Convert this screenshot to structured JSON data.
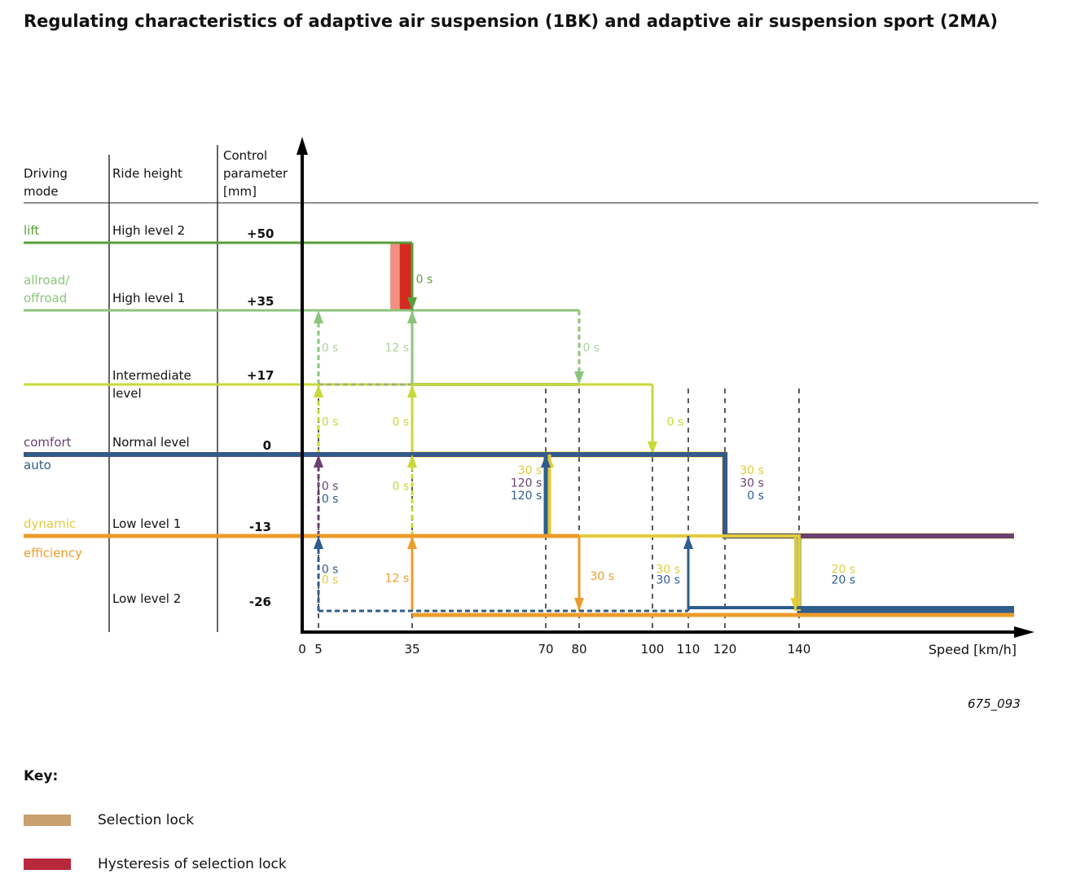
{
  "title": "Regulating characteristics of adaptive air suspension (1BK) and adaptive air suspension sport (2MA)",
  "headers": {
    "mode": "Driving\nmode",
    "height": "Ride height",
    "param": "Control\nparameter\n[mm]"
  },
  "rows": [
    {
      "modes": [
        {
          "label": "lift",
          "color": "#5a9e3a"
        }
      ],
      "height": "High level 2",
      "param": "+50",
      "mm": 50
    },
    {
      "modes": [
        {
          "label": "allroad/\noffroad",
          "color": "#8cc47c"
        }
      ],
      "height": "High level 1",
      "param": "+35",
      "mm": 35
    },
    {
      "modes": [],
      "height": "Intermediate\nlevel",
      "param": "+17",
      "mm": 17
    },
    {
      "modes": [
        {
          "label": "comfort",
          "color": "#6a3f73"
        },
        {
          "label": "auto",
          "color": "#2f5d8c"
        }
      ],
      "height": "Normal level",
      "param": "0",
      "mm": 0
    },
    {
      "modes": [
        {
          "label": "dynamic",
          "color": "#e2cc3c"
        },
        {
          "label": "efficiency",
          "color": "#ec9c2a"
        }
      ],
      "height": "Low level 1",
      "param": "-13",
      "mm": -13
    },
    {
      "modes": [],
      "height": "Low level 2",
      "param": "-26",
      "mm": -26
    }
  ],
  "figure_id": "675_093",
  "key": {
    "title": "Key:",
    "items": [
      {
        "label": "Selection lock",
        "color": "#c8a070"
      },
      {
        "label": "Hysteresis of selection lock",
        "color": "#b8283a"
      }
    ]
  },
  "chart_data": {
    "type": "line",
    "xlabel": "Speed [km/h]",
    "xticks": [
      0,
      5,
      35,
      70,
      80,
      100,
      110,
      120,
      140
    ],
    "dashed_guides": [
      5,
      35,
      70,
      80,
      100,
      110,
      120,
      140
    ],
    "locks": [
      {
        "from": 28,
        "to": 31,
        "mm_from": 35,
        "mm_to": 50,
        "color": "#f09080"
      },
      {
        "from": 31,
        "to": 35,
        "mm_from": 35,
        "mm_to": 50,
        "color": "#d42a20"
      }
    ],
    "series": [
      {
        "name": "allroad-high1",
        "color": "#8cc47c",
        "w": 3,
        "pts": [
          [
            -1,
            35
          ],
          [
            80,
            35
          ]
        ]
      },
      {
        "name": "allroad-down-80",
        "color": "#8cc47c",
        "w": 3,
        "dash": true,
        "arrow": true,
        "pts": [
          [
            80,
            35
          ],
          [
            80,
            17
          ]
        ]
      },
      {
        "name": "allroad-up-5",
        "color": "#8cc47c",
        "w": 3,
        "dash": true,
        "arrow": true,
        "pts": [
          [
            5,
            17
          ],
          [
            5,
            35
          ]
        ]
      },
      {
        "name": "allroad-up-35",
        "color": "#8cc47c",
        "w": 3,
        "arrow": true,
        "pts": [
          [
            35,
            17
          ],
          [
            35,
            35
          ]
        ]
      },
      {
        "name": "allroad-inter",
        "color": "#9cbc80",
        "w": 4,
        "pts": [
          [
            35,
            17
          ],
          [
            80,
            17
          ]
        ]
      },
      {
        "name": "inter-line",
        "color": "#c8d838",
        "w": 3,
        "pts": [
          [
            -1,
            17
          ],
          [
            100,
            17
          ]
        ]
      },
      {
        "name": "inter-dash",
        "color": "#9cb07c",
        "w": 3,
        "dash": true,
        "pts": [
          [
            5,
            17
          ],
          [
            35,
            17
          ]
        ]
      },
      {
        "name": "inter-down-100",
        "color": "#c8d838",
        "w": 3,
        "arrow": true,
        "pts": [
          [
            100,
            17
          ],
          [
            100,
            0
          ]
        ]
      },
      {
        "name": "inter-up-5",
        "color": "#c8d838",
        "w": 3,
        "dash": true,
        "arrow": true,
        "pts": [
          [
            5,
            0
          ],
          [
            5,
            17
          ]
        ]
      },
      {
        "name": "inter-up-35",
        "color": "#c8d838",
        "w": 3,
        "arrow": true,
        "pts": [
          [
            35,
            0
          ],
          [
            35,
            17
          ]
        ]
      },
      {
        "name": "inter-dash0",
        "color": "#c8d838",
        "w": 3,
        "dash": true,
        "pts": [
          [
            5,
            0
          ],
          [
            35,
            0
          ]
        ]
      },
      {
        "name": "dynamic-normal",
        "color": "#e2cc3c",
        "w": 7,
        "pts": [
          [
            35,
            0
          ],
          [
            120,
            0
          ],
          [
            120,
            -13
          ],
          [
            160,
            -13
          ]
        ]
      },
      {
        "name": "comfort",
        "color": "#6a3f73",
        "w": 6,
        "pts": [
          [
            -1,
            0
          ],
          [
            120,
            0
          ],
          [
            120,
            -13
          ],
          [
            160,
            -13
          ]
        ]
      },
      {
        "name": "auto",
        "color": "#2f5d8c",
        "w": 5,
        "pts": [
          [
            -1,
            0
          ],
          [
            120,
            0
          ],
          [
            120,
            -13
          ],
          [
            140,
            -13
          ],
          [
            140,
            -26
          ],
          [
            160,
            -26
          ]
        ]
      },
      {
        "name": "dynamic-low",
        "color": "#e2cc3c",
        "w": 4,
        "pts": [
          [
            70,
            -13
          ],
          [
            140,
            -13
          ],
          [
            140,
            -26
          ]
        ]
      },
      {
        "name": "dyn-up-70",
        "color": "#e2cc3c",
        "w": 5,
        "arrow": true,
        "pts": [
          [
            71,
            -13
          ],
          [
            71,
            0
          ]
        ]
      },
      {
        "name": "auto-up-70",
        "color": "#2f5d8c",
        "w": 5,
        "arrow": true,
        "pts": [
          [
            70,
            -13
          ],
          [
            70,
            0
          ]
        ]
      },
      {
        "name": "comfort-dash-low1",
        "color": "#6a3f73",
        "w": 4,
        "dash": true,
        "pts": [
          [
            5,
            -13
          ],
          [
            70,
            -13
          ]
        ]
      },
      {
        "name": "comfort-up-5",
        "color": "#6a3f73",
        "w": 3,
        "dash": true,
        "arrow": true,
        "pts": [
          [
            5,
            -13
          ],
          [
            5,
            0
          ]
        ]
      },
      {
        "name": "dyn-up-35",
        "color": "#c8d838",
        "w": 3,
        "dash": true,
        "arrow": true,
        "pts": [
          [
            35,
            -13
          ],
          [
            35,
            0
          ]
        ]
      },
      {
        "name": "efficiency",
        "color": "#ec9c2a",
        "w": 5,
        "pts": [
          [
            -1,
            -13
          ],
          [
            80,
            -13
          ]
        ]
      },
      {
        "name": "eff-down-80",
        "color": "#ec9c2a",
        "w": 3,
        "arrow": true,
        "pts": [
          [
            80,
            -13
          ],
          [
            80,
            -26
          ]
        ]
      },
      {
        "name": "eff-low2",
        "color": "#ec9c2a",
        "w": 5,
        "pts": [
          [
            35,
            -27
          ],
          [
            160,
            -27
          ]
        ]
      },
      {
        "name": "eff-up-35",
        "color": "#ec9c2a",
        "w": 3,
        "arrow": true,
        "pts": [
          [
            35,
            -26
          ],
          [
            35,
            -13
          ]
        ]
      },
      {
        "name": "auto-dash-low2",
        "color": "#2f5d8c",
        "w": 3,
        "dash": true,
        "pts": [
          [
            5,
            -26
          ],
          [
            110,
            -26
          ]
        ]
      },
      {
        "name": "auto-up-5",
        "color": "#2f5d8c",
        "w": 3,
        "dash": true,
        "arrow": true,
        "pts": [
          [
            5,
            -26
          ],
          [
            5,
            -13
          ]
        ]
      },
      {
        "name": "auto-low2",
        "color": "#2f5d8c",
        "w": 4,
        "pts": [
          [
            110,
            -25
          ],
          [
            160,
            -25
          ]
        ]
      },
      {
        "name": "auto-up-110",
        "color": "#2f5d8c",
        "w": 3,
        "arrow": true,
        "pts": [
          [
            110,
            -26
          ],
          [
            110,
            -13
          ]
        ]
      },
      {
        "name": "dyn-down-140",
        "color": "#e2cc3c",
        "w": 3,
        "arrow": true,
        "pts": [
          [
            139,
            -13
          ],
          [
            139,
            -26
          ]
        ]
      },
      {
        "name": "lift",
        "color": "#5a9e3a",
        "w": 3,
        "pts": [
          [
            -1,
            50
          ],
          [
            35,
            50
          ]
        ]
      },
      {
        "name": "lift-down-35",
        "color": "#5a9e3a",
        "w": 3,
        "arrow": true,
        "pts": [
          [
            35,
            50
          ],
          [
            35,
            35
          ]
        ]
      }
    ],
    "labels": [
      {
        "text": "0 s",
        "x": 36,
        "mm": 42,
        "color": "#5a9e3a",
        "align": "left"
      },
      {
        "text": "0 s",
        "x": 6,
        "mm": 26,
        "color": "#b0d0a0",
        "align": "left"
      },
      {
        "text": "12 s",
        "x": 34,
        "mm": 26,
        "color": "#b0d0a0",
        "align": "right"
      },
      {
        "text": "0 s",
        "x": 81,
        "mm": 26,
        "color": "#b0d0a0",
        "align": "left"
      },
      {
        "text": "0 s",
        "x": 6,
        "mm": 8,
        "color": "#c8d838",
        "align": "left"
      },
      {
        "text": "0 s",
        "x": 34,
        "mm": 8,
        "color": "#c8d838",
        "align": "right"
      },
      {
        "text": "0 s",
        "x": 104,
        "mm": 8,
        "color": "#c8d838",
        "align": "left"
      },
      {
        "text": "0 s",
        "x": 6,
        "mm": -5,
        "color": "#6a3f73",
        "align": "left"
      },
      {
        "text": "0 s",
        "x": 6,
        "mm": -7,
        "color": "#2f5d8c",
        "align": "left"
      },
      {
        "text": "0 s",
        "x": 34,
        "mm": -5,
        "color": "#c8d838",
        "align": "right"
      },
      {
        "text": "30 s",
        "x": 69,
        "mm": -2.5,
        "color": "#e2cc3c",
        "align": "right"
      },
      {
        "text": "120 s",
        "x": 69,
        "mm": -4.5,
        "color": "#6a3f73",
        "align": "right"
      },
      {
        "text": "120 s",
        "x": 69,
        "mm": -6.5,
        "color": "#2f5d8c",
        "align": "right"
      },
      {
        "text": "30 s",
        "x": 124,
        "mm": -2.5,
        "color": "#e2cc3c",
        "align": "left"
      },
      {
        "text": "30 s",
        "x": 124,
        "mm": -4.5,
        "color": "#6a3f73",
        "align": "left"
      },
      {
        "text": "0 s",
        "x": 126,
        "mm": -6.5,
        "color": "#2f5d8c",
        "align": "left"
      },
      {
        "text": "0 s",
        "x": 6,
        "mm": -18.5,
        "color": "#2f5d8c",
        "align": "left"
      },
      {
        "text": "0 s",
        "x": 6,
        "mm": -20.3,
        "color": "#e2cc3c",
        "align": "left"
      },
      {
        "text": "12 s",
        "x": 34,
        "mm": -20,
        "color": "#ec9c2a",
        "align": "right"
      },
      {
        "text": "30 s",
        "x": 83,
        "mm": -19.7,
        "color": "#ec9c2a",
        "align": "left"
      },
      {
        "text": "30 s",
        "x": 101,
        "mm": -18.5,
        "color": "#e2cc3c",
        "align": "left"
      },
      {
        "text": "30 s",
        "x": 101,
        "mm": -20.3,
        "color": "#2f5d8c",
        "align": "left"
      },
      {
        "text": "20 s",
        "x": 143,
        "mm": -18.5,
        "color": "#e2cc3c",
        "align": "left"
      },
      {
        "text": "20 s",
        "x": 143,
        "mm": -20.3,
        "color": "#2f5d8c",
        "align": "left"
      }
    ]
  }
}
